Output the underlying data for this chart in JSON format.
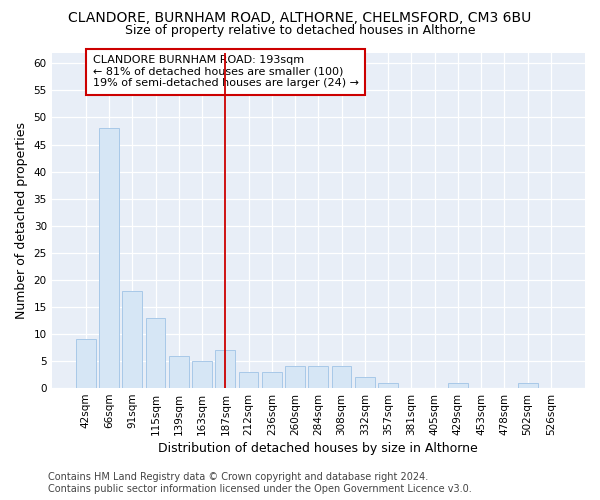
{
  "title": "CLANDORE, BURNHAM ROAD, ALTHORNE, CHELMSFORD, CM3 6BU",
  "subtitle": "Size of property relative to detached houses in Althorne",
  "xlabel": "Distribution of detached houses by size in Althorne",
  "ylabel": "Number of detached properties",
  "categories": [
    "42sqm",
    "66sqm",
    "91sqm",
    "115sqm",
    "139sqm",
    "163sqm",
    "187sqm",
    "212sqm",
    "236sqm",
    "260sqm",
    "284sqm",
    "308sqm",
    "332sqm",
    "357sqm",
    "381sqm",
    "405sqm",
    "429sqm",
    "453sqm",
    "478sqm",
    "502sqm",
    "526sqm"
  ],
  "values": [
    9,
    48,
    18,
    13,
    6,
    5,
    7,
    3,
    3,
    4,
    4,
    4,
    2,
    1,
    0,
    0,
    1,
    0,
    0,
    1,
    0
  ],
  "bar_color": "#d6e6f5",
  "bar_edge_color": "#a8c8e8",
  "highlight_line_index": 6,
  "highlight_line_color": "#cc0000",
  "annotation_text": "CLANDORE BURNHAM ROAD: 193sqm\n← 81% of detached houses are smaller (100)\n19% of semi-detached houses are larger (24) →",
  "annotation_box_edgecolor": "#cc0000",
  "ylim": [
    0,
    62
  ],
  "yticks": [
    0,
    5,
    10,
    15,
    20,
    25,
    30,
    35,
    40,
    45,
    50,
    55,
    60
  ],
  "footer_line1": "Contains HM Land Registry data © Crown copyright and database right 2024.",
  "footer_line2": "Contains public sector information licensed under the Open Government Licence v3.0.",
  "plot_bg_color": "#e8eef7",
  "fig_bg_color": "#ffffff",
  "grid_color": "#ffffff",
  "title_fontsize": 10,
  "subtitle_fontsize": 9,
  "axis_label_fontsize": 9,
  "tick_fontsize": 7.5,
  "annotation_fontsize": 8,
  "footer_fontsize": 7
}
